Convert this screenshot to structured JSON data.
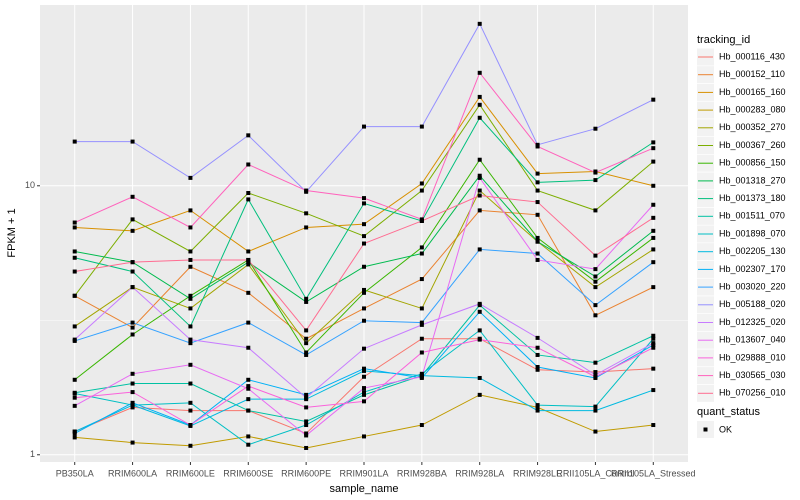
{
  "chart_data": {
    "type": "line",
    "x_label": "sample_name",
    "y_label": "FPKM + 1",
    "log_y": true,
    "grid": true,
    "legend_title": "tracking_id",
    "legend2_title": "quant_status",
    "legend2_entries": [
      "OK"
    ],
    "categories": [
      "PB350LA",
      "RRIM600LA",
      "RRIM600LE",
      "RRIM600SE",
      "RRIM600PE",
      "RRIM901LA",
      "RRIM928BA",
      "RRIM928LA",
      "RRIM928LE",
      "RRII105LA_Control",
      "RRII105LA_Stressed"
    ],
    "ylim": [
      0.94,
      47
    ],
    "yticks": [
      1,
      10
    ],
    "series": [
      {
        "name": "Hb_000116_430",
        "color": "#F8766D",
        "values": [
          1.22,
          1.5,
          1.46,
          1.46,
          1.2,
          1.95,
          2.7,
          2.7,
          2.07,
          2.03,
          2.09
        ]
      },
      {
        "name": "Hb_000152_110",
        "color": "#EA8331",
        "values": [
          3.9,
          2.97,
          5.0,
          4.0,
          2.7,
          3.5,
          4.5,
          8.1,
          7.8,
          3.3,
          4.2
        ]
      },
      {
        "name": "Hb_000165_160",
        "color": "#D89000",
        "values": [
          7.0,
          6.8,
          8.1,
          5.7,
          7.0,
          7.2,
          10.2,
          21.4,
          11.1,
          11.3,
          10.0
        ]
      },
      {
        "name": "Hb_000283_080",
        "color": "#C09B00",
        "values": [
          1.16,
          1.11,
          1.08,
          1.17,
          1.06,
          1.17,
          1.29,
          1.67,
          1.5,
          1.22,
          1.29
        ]
      },
      {
        "name": "Hb_000352_270",
        "color": "#A3A500",
        "values": [
          3.0,
          4.2,
          3.5,
          5.1,
          2.6,
          4.1,
          3.5,
          9.6,
          6.2,
          4.2,
          5.8
        ]
      },
      {
        "name": "Hb_000367_260",
        "color": "#7CAE00",
        "values": [
          3.9,
          7.5,
          5.7,
          9.4,
          7.9,
          6.5,
          9.6,
          20.0,
          9.6,
          8.1,
          12.3
        ]
      },
      {
        "name": "Hb_000856_150",
        "color": "#39B600",
        "values": [
          1.9,
          2.8,
          3.9,
          5.3,
          2.4,
          4.0,
          5.9,
          12.5,
          6.4,
          4.4,
          6.4
        ]
      },
      {
        "name": "Hb_001318_270",
        "color": "#00BB4E",
        "values": [
          5.7,
          5.2,
          3.8,
          5.2,
          3.7,
          5.0,
          5.6,
          10.9,
          6.2,
          4.6,
          6.8
        ]
      },
      {
        "name": "Hb_001373_180",
        "color": "#00BF7D",
        "values": [
          5.4,
          4.8,
          3.0,
          8.9,
          3.8,
          8.6,
          7.4,
          17.9,
          10.3,
          10.5,
          14.5
        ]
      },
      {
        "name": "Hb_001511_070",
        "color": "#00C1A3",
        "values": [
          1.7,
          1.84,
          1.84,
          1.46,
          1.33,
          1.67,
          1.97,
          3.6,
          2.35,
          2.2,
          2.77
        ]
      },
      {
        "name": "Hb_001898_070",
        "color": "#00BFC4",
        "values": [
          1.69,
          1.53,
          1.56,
          1.09,
          1.29,
          1.71,
          2.0,
          2.9,
          1.53,
          1.51,
          2.7
        ]
      },
      {
        "name": "Hb_002205_130",
        "color": "#00BAE0",
        "values": [
          1.22,
          1.53,
          1.28,
          1.61,
          1.61,
          2.05,
          1.97,
          1.93,
          1.46,
          1.46,
          1.74
        ]
      },
      {
        "name": "Hb_002307_170",
        "color": "#00B0F6",
        "values": [
          1.2,
          1.56,
          1.29,
          1.9,
          1.67,
          2.09,
          1.93,
          3.4,
          2.12,
          1.93,
          2.56
        ]
      },
      {
        "name": "Hb_003020_220",
        "color": "#35A2FF",
        "values": [
          2.65,
          3.1,
          2.6,
          3.1,
          2.35,
          3.15,
          3.1,
          5.8,
          5.6,
          3.6,
          5.2
        ]
      },
      {
        "name": "Hb_005188_020",
        "color": "#9590FF",
        "values": [
          14.6,
          14.6,
          10.7,
          15.4,
          9.5,
          16.6,
          16.6,
          40.0,
          14.2,
          16.3,
          20.9
        ]
      },
      {
        "name": "Hb_012325_020",
        "color": "#C77CFF",
        "values": [
          2.68,
          4.2,
          2.68,
          2.5,
          1.63,
          2.48,
          3.04,
          3.64,
          2.72,
          1.98,
          2.6
        ]
      },
      {
        "name": "Hb_013607_040",
        "color": "#E76BF3",
        "values": [
          1.52,
          2.0,
          2.16,
          1.76,
          1.18,
          1.77,
          1.95,
          10.7,
          5.3,
          4.9,
          8.5
        ]
      },
      {
        "name": "Hb_029888_010",
        "color": "#FA62DB",
        "values": [
          1.63,
          1.71,
          1.29,
          1.8,
          1.5,
          1.58,
          2.4,
          2.68,
          2.5,
          1.95,
          2.5
        ]
      },
      {
        "name": "Hb_030565_030",
        "color": "#FF62BC",
        "values": [
          7.3,
          9.1,
          7.0,
          12.0,
          9.6,
          9.0,
          7.5,
          26.3,
          14.0,
          11.2,
          13.8
        ]
      },
      {
        "name": "Hb_070256_010",
        "color": "#FF6C91",
        "values": [
          4.8,
          5.2,
          5.3,
          5.3,
          2.9,
          6.1,
          7.4,
          9.2,
          8.7,
          5.5,
          7.6
        ]
      }
    ]
  }
}
